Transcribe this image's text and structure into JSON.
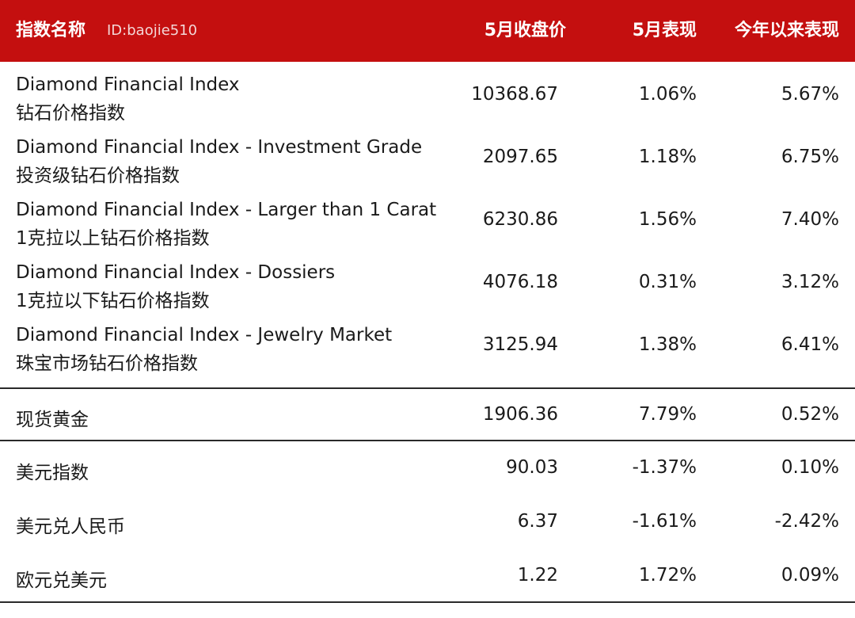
{
  "header": {
    "name": "指数名称",
    "watermark": "ID:baojie510",
    "close": "5月收盘价",
    "may": "5月表现",
    "ytd": "今年以来表现"
  },
  "diamond_rows": [
    {
      "en": "Diamond Financial Index",
      "cn": "钻石价格指数",
      "close": "10368.67",
      "may": "1.06%",
      "ytd": "5.67%"
    },
    {
      "en": "Diamond Financial Index - Investment Grade",
      "cn": "投资级钻石价格指数",
      "close": "2097.65",
      "may": "1.18%",
      "ytd": "6.75%"
    },
    {
      "en": "Diamond Financial Index - Larger than 1 Carat",
      "cn": "1克拉以上钻石价格指数",
      "close": "6230.86",
      "may": "1.56%",
      "ytd": "7.40%"
    },
    {
      "en": "Diamond Financial Index - Dossiers",
      "cn": "1克拉以下钻石价格指数",
      "close": "4076.18",
      "may": "0.31%",
      "ytd": "3.12%"
    },
    {
      "en": "Diamond Financial Index - Jewelry Market",
      "cn": "珠宝市场钻石价格指数",
      "close": "3125.94",
      "may": "1.38%",
      "ytd": "6.41%"
    }
  ],
  "gold_row": {
    "name": "现货黄金",
    "close": "1906.36",
    "may": "7.79%",
    "ytd": "0.52%"
  },
  "fx_rows": [
    {
      "name": "美元指数",
      "close": "90.03",
      "may": "-1.37%",
      "ytd": "0.10%"
    },
    {
      "name": "美元兑人民币",
      "close": "6.37",
      "may": "-1.61%",
      "ytd": "-2.42%"
    },
    {
      "name": "欧元兑美元",
      "close": "1.22",
      "may": "1.72%",
      "ytd": "0.09%"
    }
  ]
}
